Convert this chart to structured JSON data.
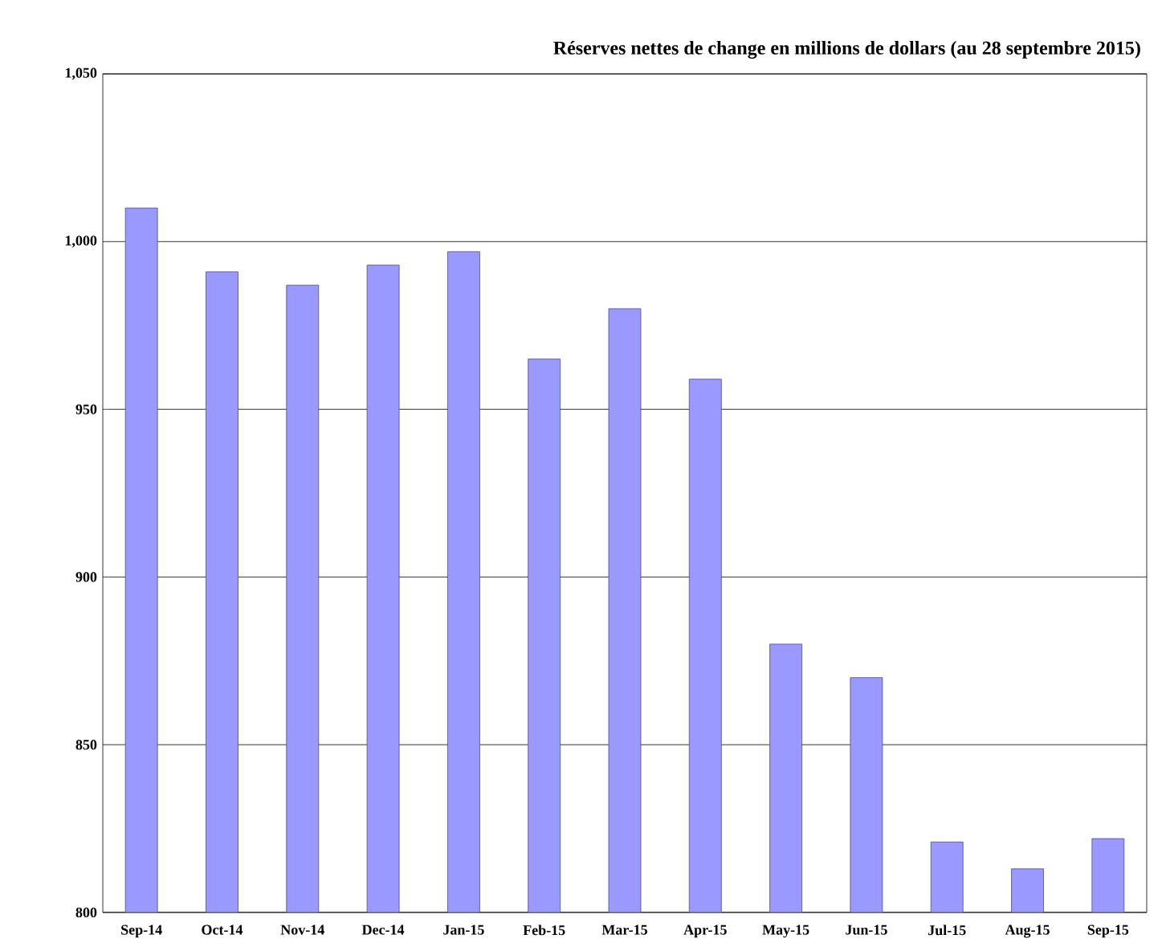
{
  "chart_data": {
    "type": "bar",
    "title": "Réserves nettes de change en millions de dollars (au  28 septembre 2015)",
    "categories": [
      "Sep-14",
      "Oct-14",
      "Nov-14",
      "Dec-14",
      "Jan-15",
      "Feb-15",
      "Mar-15",
      "Apr-15",
      "May-15",
      "Jun-15",
      "Jul-15",
      "Aug-15",
      "Sep-15"
    ],
    "values": [
      1010,
      991,
      987,
      993,
      997,
      965,
      980,
      959,
      880,
      870,
      821,
      813,
      822
    ],
    "color": "#9999ff",
    "ylim": [
      800,
      1050
    ],
    "yticks": [
      800,
      850,
      900,
      950,
      {
        "value": 1000,
        "label": "1,000"
      },
      {
        "value": 1050,
        "label": "1,050"
      }
    ],
    "grid": "y"
  }
}
